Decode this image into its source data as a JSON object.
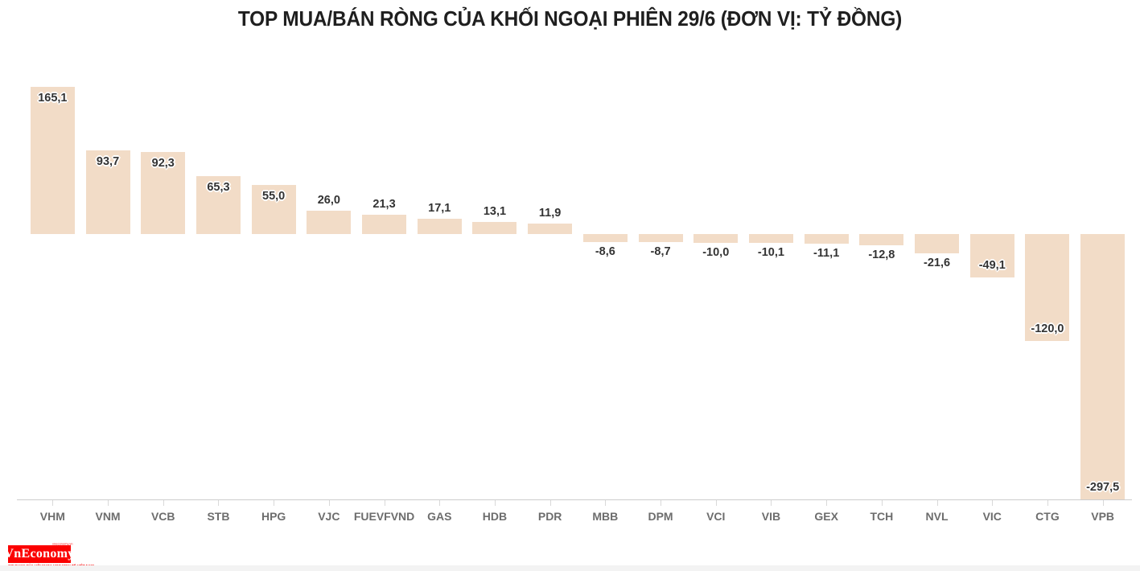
{
  "chart_data": {
    "type": "bar",
    "title": "TOP MUA/BÁN RÒNG CỦA KHỐI NGOẠI PHIÊN 29/6 (ĐƠN VỊ: TỶ ĐỒNG)",
    "categories": [
      "VHM",
      "VNM",
      "VCB",
      "STB",
      "HPG",
      "VJC",
      "FUEVFVND",
      "GAS",
      "HDB",
      "PDR",
      "MBB",
      "DPM",
      "VCI",
      "VIB",
      "GEX",
      "TCH",
      "NVL",
      "VIC",
      "CTG",
      "VPB"
    ],
    "values": [
      165.1,
      93.7,
      92.3,
      65.3,
      55.0,
      26.0,
      21.3,
      17.1,
      13.1,
      11.9,
      -8.6,
      -8.7,
      -10.0,
      -10.1,
      -11.1,
      -12.8,
      -21.6,
      -49.1,
      -120.0,
      -297.5
    ],
    "value_labels": [
      "165,1",
      "93,7",
      "92,3",
      "65,3",
      "55,0",
      "26,0",
      "21,3",
      "17,1",
      "13,1",
      "11,9",
      "-8,6",
      "-8,7",
      "-10,0",
      "-10,1",
      "-11,1",
      "-12,8",
      "-21,6",
      "-49,1",
      "-120,0",
      "-297,5"
    ],
    "ylim": [
      -297.5,
      165.1
    ],
    "grid": false,
    "legend": false,
    "bar_color": "#f2dcc7",
    "value_label_color": "#333333",
    "axis_label_color": "#6d6d6d",
    "axis_line_color": "#cccccc"
  },
  "footer": {
    "publisher": "VnEconomy",
    "website": "vneconomy.vn",
    "tagline": "CƠ QUAN CỦA HỘI KHOA HỌC KINH TẾ VIỆT NAM",
    "brand_color": "#fb0000"
  }
}
